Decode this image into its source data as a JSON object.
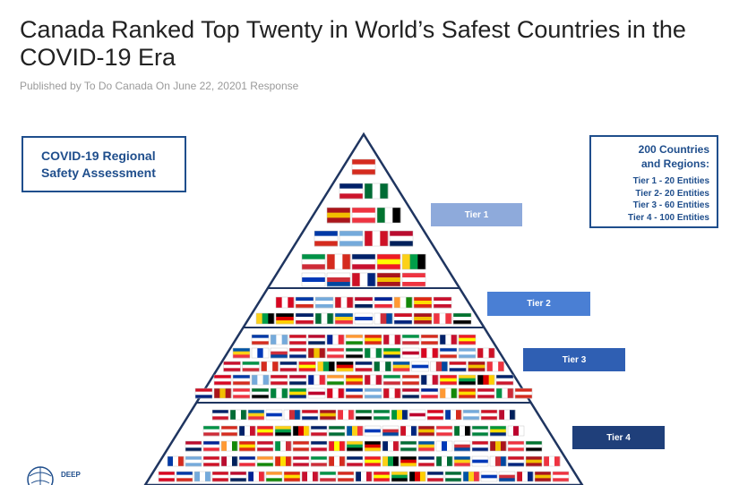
{
  "article": {
    "title": "Canada Ranked Top Twenty in World’s Safest Countries in the COVID-19 Era",
    "byline": "Published by To Do Canada On June 22, 20201 Response"
  },
  "infographic": {
    "left_box": {
      "line1": "COVID-19 Regional",
      "line2": "Safety Assessment"
    },
    "right_box": {
      "heading1": "200 Countries",
      "heading2": "and Regions:",
      "tiers": [
        "Tier 1 - 20 Entities",
        "Tier 2- 20 Entities",
        "Tier 3 - 60 Entities",
        "Tier 4 - 100 Entities"
      ]
    },
    "tier_labels": [
      "Tier 1",
      "Tier 2",
      "Tier 3",
      "Tier 4"
    ],
    "logo_text": "DEEP\nKNOWLEDGE",
    "colors": {
      "primary": "#1f4e8c",
      "tier1": "#8eaadb",
      "tier2": "#4a7fd4",
      "tier3": "#2f5fb3",
      "tier4": "#1f3f7a",
      "pyramid_line": "#1f3560"
    }
  }
}
